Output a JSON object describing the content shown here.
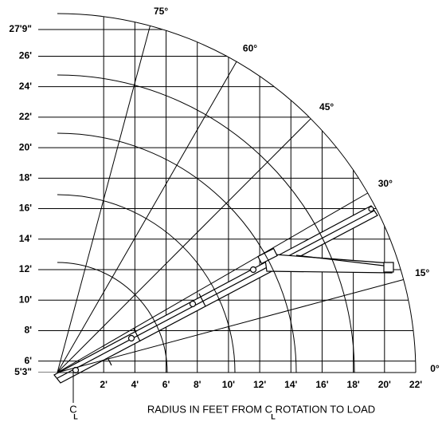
{
  "chart_data": {
    "type": "range",
    "xlabel": "RADIUS IN FEET FROM C ROTATION TO LOAD",
    "centerline": {
      "top": "C",
      "bottom": "L"
    },
    "xlim": [
      0,
      22
    ],
    "xticks": [
      {
        "value": 2,
        "label": "2'"
      },
      {
        "value": 4,
        "label": "4'"
      },
      {
        "value": 6,
        "label": "6'"
      },
      {
        "value": 8,
        "label": "8'"
      },
      {
        "value": 10,
        "label": "10'"
      },
      {
        "value": 12,
        "label": "12'"
      },
      {
        "value": 14,
        "label": "14'"
      },
      {
        "value": 16,
        "label": "16'"
      },
      {
        "value": 18,
        "label": "18'"
      },
      {
        "value": 20,
        "label": "20'"
      },
      {
        "value": 22,
        "label": "22'"
      }
    ],
    "ylim": [
      5.25,
      27.75
    ],
    "yticks": [
      {
        "value": 5.25,
        "label": "5'3\""
      },
      {
        "value": 6,
        "label": "6'"
      },
      {
        "value": 8,
        "label": "8'"
      },
      {
        "value": 10,
        "label": "10'"
      },
      {
        "value": 12,
        "label": "12'"
      },
      {
        "value": 14,
        "label": "14'"
      },
      {
        "value": 16,
        "label": "16'"
      },
      {
        "value": 18,
        "label": "18'"
      },
      {
        "value": 20,
        "label": "20'"
      },
      {
        "value": 22,
        "label": "22'"
      },
      {
        "value": 24,
        "label": "24'"
      },
      {
        "value": 26,
        "label": "26'"
      },
      {
        "value": 27.75,
        "label": "27'9\""
      }
    ],
    "angles": [
      {
        "value": 75,
        "label": "75°"
      },
      {
        "value": 60,
        "label": "60°"
      },
      {
        "value": 45,
        "label": "45°"
      },
      {
        "value": 30,
        "label": "30°"
      },
      {
        "value": 15,
        "label": "15°"
      },
      {
        "value": 0,
        "label": "0°"
      }
    ],
    "grid": true
  }
}
